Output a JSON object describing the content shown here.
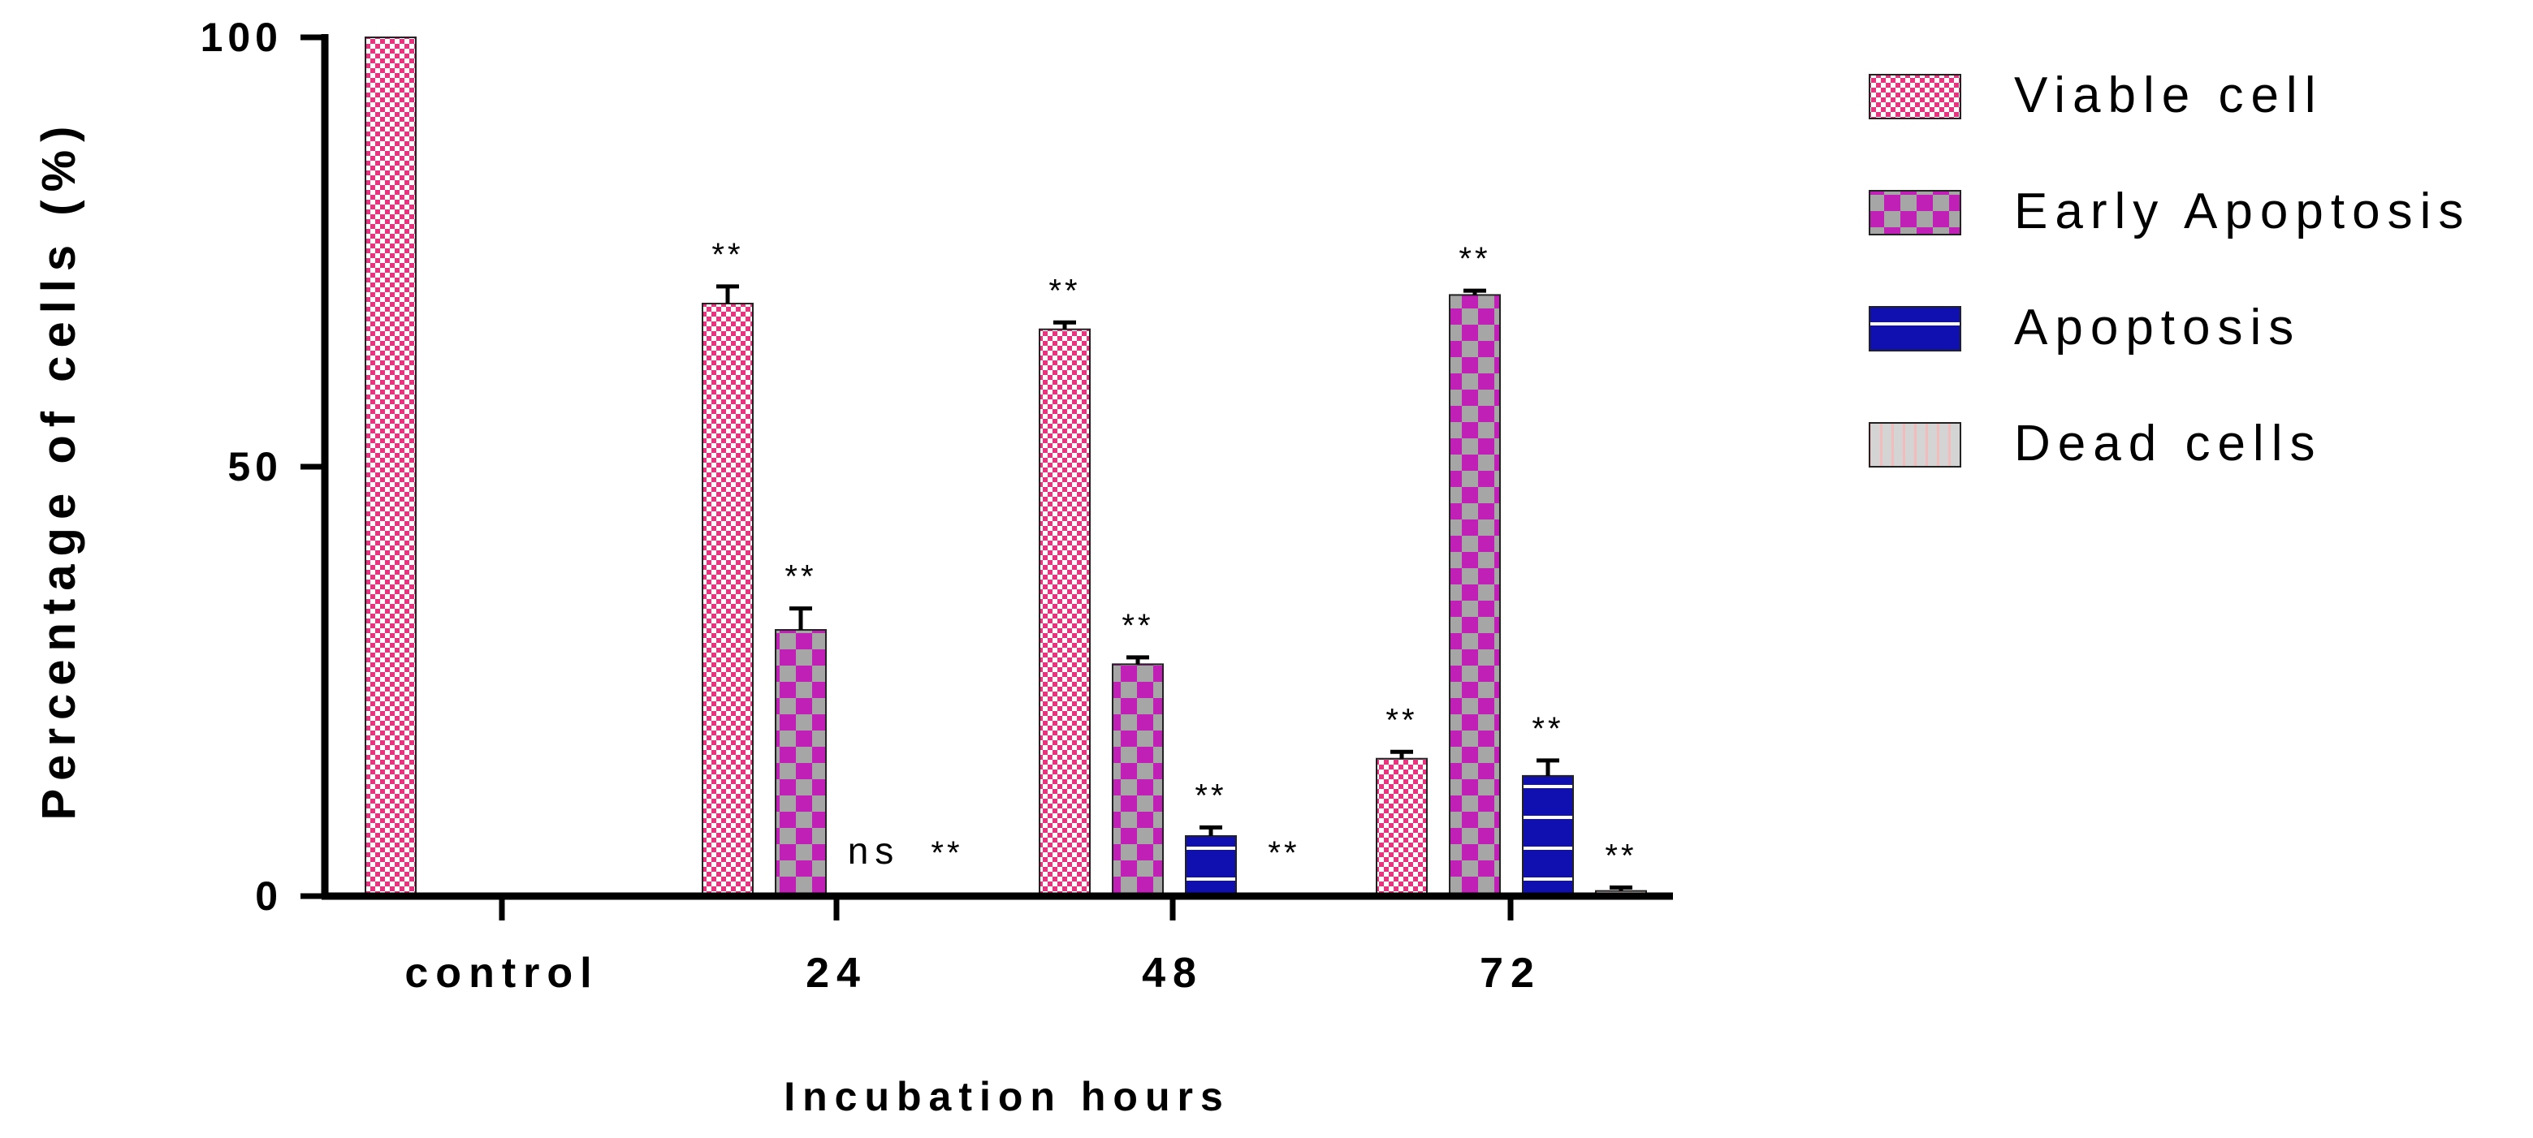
{
  "chart_data": {
    "type": "bar",
    "title": "",
    "xlabel": "Incubation hours",
    "ylabel": "Percentage of cells (%)",
    "ylim": [
      0,
      100
    ],
    "yticks": [
      0,
      50,
      100
    ],
    "categories": [
      "control",
      "24",
      "48",
      "72"
    ],
    "grid": false,
    "legend_position": "right",
    "series": [
      {
        "name": "Viable cell",
        "pattern": "small-check",
        "color_a": "#ffffff",
        "color_b": "#e8337f",
        "values": [
          100,
          69,
          66,
          16
        ],
        "errors": [
          0,
          2,
          0.8,
          0.8
        ],
        "annotations": [
          "",
          "**",
          "**",
          "**"
        ]
      },
      {
        "name": "Early Apoptosis",
        "pattern": "big-check",
        "color_a": "#a6a6a6",
        "color_b": "#c020b6",
        "values": [
          0,
          31,
          27,
          70
        ],
        "errors": [
          0,
          2.5,
          0.8,
          0.5
        ],
        "annotations": [
          "",
          "**",
          "**",
          "**"
        ]
      },
      {
        "name": "Apoptosis",
        "pattern": "hlines",
        "color_a": "#1010b0",
        "color_b": "#ffffff",
        "values": [
          0,
          0,
          7,
          14
        ],
        "errors": [
          0,
          0,
          1,
          1.8
        ],
        "annotations": [
          "",
          "ns",
          "**",
          "**"
        ]
      },
      {
        "name": "Dead cells",
        "pattern": "vstripes",
        "color_a": "#d4d4d4",
        "color_b": "#f2bcbc",
        "values": [
          0,
          0,
          0,
          0.6
        ],
        "errors": [
          0,
          0,
          0,
          0.4
        ],
        "annotations": [
          "",
          "**",
          "**",
          "**"
        ]
      }
    ]
  }
}
